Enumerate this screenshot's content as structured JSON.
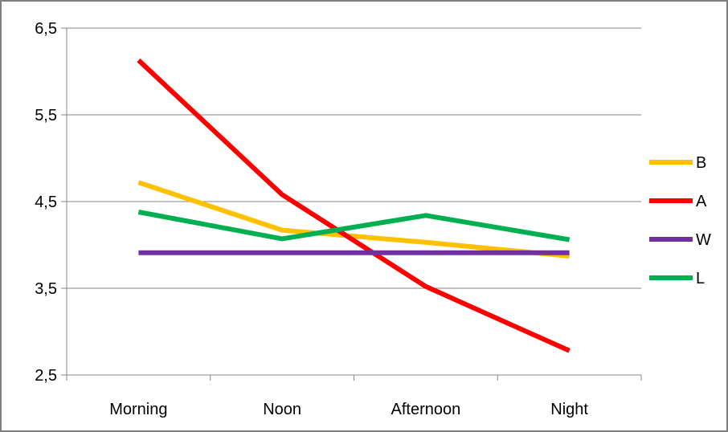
{
  "chart_data": {
    "type": "line",
    "title": "",
    "xlabel": "",
    "ylabel": "",
    "categories": [
      "Morning",
      "Noon",
      "Afternoon",
      "Night"
    ],
    "ylim": [
      2.5,
      6.5
    ],
    "yticks": [
      "2,5",
      "3,5",
      "4,5",
      "5,5",
      "6,5"
    ],
    "ytick_values": [
      2.5,
      3.5,
      4.5,
      5.5,
      6.5
    ],
    "grid": "horizontal",
    "legend_position": "right",
    "series": [
      {
        "name": "B",
        "color": "#FFC000",
        "values": [
          4.72,
          4.17,
          4.03,
          3.87
        ]
      },
      {
        "name": "A",
        "color": "#FF0000",
        "values": [
          6.13,
          4.58,
          3.52,
          2.78
        ]
      },
      {
        "name": "W",
        "color": "#7030A0",
        "values": [
          3.91,
          3.91,
          3.91,
          3.91
        ]
      },
      {
        "name": "L",
        "color": "#00B050",
        "values": [
          4.38,
          4.07,
          4.34,
          4.06
        ]
      }
    ]
  }
}
